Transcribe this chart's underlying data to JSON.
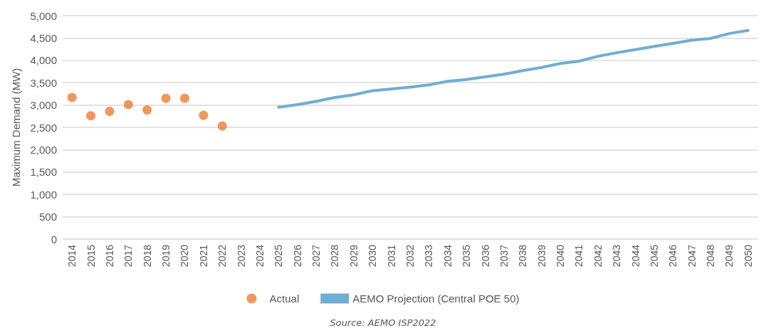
{
  "chart_data": {
    "type": "line",
    "ylabel": "Maximum Demand (MW)",
    "categories": [
      "2014",
      "2015",
      "2016",
      "2017",
      "2018",
      "2019",
      "2020",
      "2021",
      "2022",
      "2023",
      "2024",
      "2025",
      "2026",
      "2027",
      "2028",
      "2029",
      "2030",
      "2031",
      "2032",
      "2033",
      "2034",
      "2035",
      "2036",
      "2037",
      "2038",
      "2039",
      "2040",
      "2041",
      "2042",
      "2043",
      "2044",
      "2045",
      "2046",
      "2047",
      "2048",
      "2049",
      "2050"
    ],
    "series": [
      {
        "name": "Actual",
        "type": "scatter",
        "marker": "circle",
        "color": "#ed7d31",
        "values": [
          3170,
          2760,
          2860,
          3010,
          2890,
          3150,
          3150,
          2770,
          2530,
          null,
          null,
          null,
          null,
          null,
          null,
          null,
          null,
          null,
          null,
          null,
          null,
          null,
          null,
          null,
          null,
          null,
          null,
          null,
          null,
          null,
          null,
          null,
          null,
          null,
          null,
          null,
          null
        ]
      },
      {
        "name": "AEMO Projection (Central POE 50)",
        "marker": "none",
        "line_style": "solid",
        "color": "#70add4",
        "values": [
          null,
          null,
          null,
          null,
          null,
          null,
          null,
          null,
          null,
          null,
          null,
          2950,
          3010,
          3080,
          3170,
          3230,
          3320,
          3360,
          3400,
          3450,
          3530,
          3570,
          3630,
          3690,
          3770,
          3840,
          3930,
          3980,
          4090,
          4170,
          4240,
          4310,
          4380,
          4450,
          4490,
          4600,
          4670
        ]
      }
    ],
    "ylim": [
      0,
      5000
    ],
    "yticks": [
      0,
      500,
      {
        "value": 1000,
        "label": "1,000"
      },
      {
        "value": 1500,
        "label": "1,500"
      },
      {
        "value": 2000,
        "label": "2,000"
      },
      {
        "value": 2500,
        "label": "2,500"
      },
      {
        "value": 3000,
        "label": "3,000"
      },
      {
        "value": 3500,
        "label": "3,500"
      },
      {
        "value": 4000,
        "label": "4,000"
      },
      {
        "value": 4500,
        "label": "4,500"
      },
      {
        "value": 5000,
        "label": "5,000"
      }
    ],
    "grid": "y",
    "legend": "bottom",
    "annotations": [
      "Source: AEMO ISP2022"
    ]
  }
}
